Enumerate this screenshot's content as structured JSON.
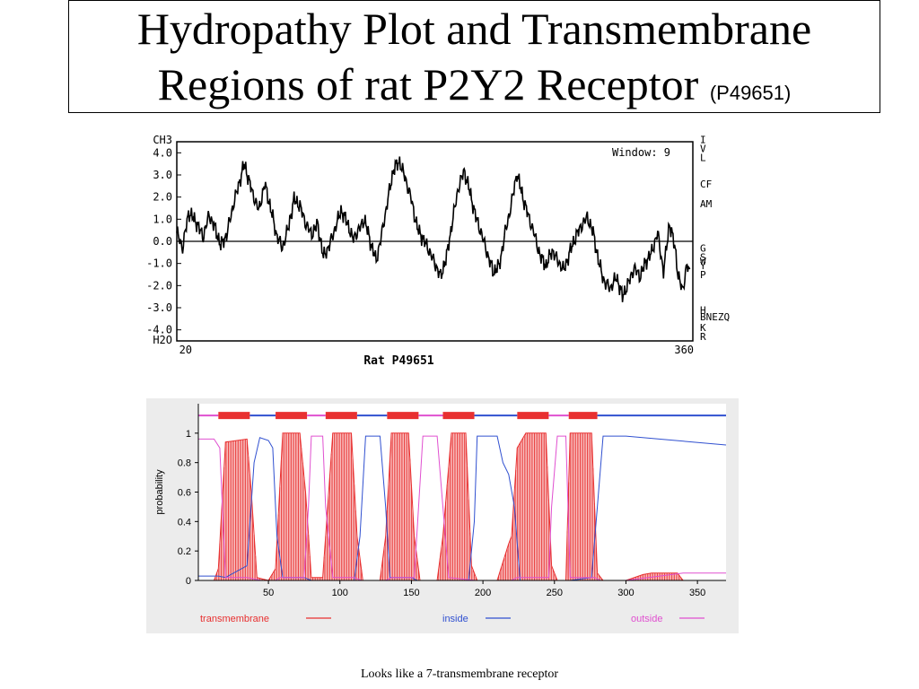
{
  "slide": {
    "title_line1": "Hydropathy Plot and Transmembrane",
    "title_line2": "Regions of rat P2Y2 Receptor",
    "title_accession": "(P49651)",
    "caption": "Looks like a 7-transmembrane receptor"
  },
  "chart_data": [
    {
      "type": "line",
      "xlabel": "Rat P49651",
      "annotation": "Window: 9",
      "ylabel_top": "CH3",
      "ylabel_bottom": "H2O",
      "ylim": [
        -4.5,
        4.5
      ],
      "xlim": [
        14,
        366
      ],
      "y_ticks": [
        "4.0",
        "3.0",
        "2.0",
        "1.0",
        "0.0",
        "-1.0",
        "-2.0",
        "-3.0",
        "-4.0"
      ],
      "y_tick_values": [
        4,
        3,
        2,
        1,
        0,
        -1,
        -2,
        -3,
        -4
      ],
      "x_ticks": [
        "20",
        "360"
      ],
      "x_tick_values": [
        20,
        360
      ],
      "right_labels": [
        "I",
        "V",
        "L",
        "CF",
        "AM",
        "G",
        "S",
        "W",
        "Y",
        "P",
        "H",
        "BNEZQ",
        "K",
        "R"
      ],
      "right_label_values": [
        4.6,
        4.2,
        3.8,
        2.6,
        1.7,
        -0.3,
        -0.7,
        -0.9,
        -1.1,
        -1.5,
        -3.1,
        -3.4,
        -3.9,
        -4.3
      ],
      "grid": false,
      "reference_line": 0,
      "series": [
        {
          "x": [
            14,
            18,
            22,
            27,
            32,
            36,
            40,
            44,
            48,
            52,
            56,
            60,
            63,
            66,
            70,
            74,
            78,
            82,
            86,
            90,
            94,
            98,
            102,
            106,
            110,
            114,
            118,
            122,
            126,
            130,
            134,
            138,
            142,
            146,
            150,
            154,
            158,
            162,
            166,
            170,
            174,
            178,
            182,
            186,
            190,
            194,
            198,
            202,
            206,
            210,
            214,
            218,
            222,
            226,
            230,
            234,
            238,
            242,
            246,
            250,
            254,
            258,
            262,
            266,
            270,
            274,
            278,
            282,
            286,
            290,
            294,
            298,
            302,
            306,
            310,
            314,
            318,
            322,
            326,
            330,
            334,
            338,
            342,
            346,
            350,
            354,
            356,
            359,
            362,
            364
          ],
          "y": [
            0.4,
            -0.3,
            1.3,
            0.9,
            0.2,
            1.2,
            0.6,
            -0.2,
            0.3,
            1.5,
            2.5,
            3.5,
            2.8,
            2.1,
            1.4,
            2.6,
            1.5,
            0.3,
            -0.3,
            0.6,
            1.9,
            1.6,
            0.8,
            0.3,
            0.8,
            -0.7,
            -0.2,
            0.6,
            1.4,
            0.9,
            0.1,
            0.5,
            1.0,
            0.0,
            -0.9,
            0.4,
            1.9,
            3.3,
            3.6,
            2.8,
            1.9,
            0.6,
            0.1,
            -0.4,
            -1.0,
            -1.6,
            -0.7,
            0.9,
            2.4,
            3.2,
            2.2,
            1.1,
            0.3,
            -0.6,
            -1.4,
            -1.1,
            0.4,
            1.6,
            3.1,
            2.0,
            1.1,
            0.3,
            -0.7,
            -1.1,
            -0.4,
            -0.9,
            -1.3,
            -0.5,
            0.2,
            0.7,
            1.1,
            0.4,
            -1.0,
            -1.9,
            -2.1,
            -1.6,
            -2.5,
            -1.9,
            -1.2,
            -1.6,
            -0.9,
            -0.5,
            0.4,
            -1.4,
            0.8,
            -0.3,
            -1.6,
            -2.2,
            -1.1,
            -1.4
          ]
        }
      ]
    },
    {
      "type": "line",
      "ylabel": "probability",
      "xlim": [
        1,
        370
      ],
      "ylim": [
        0,
        1.2
      ],
      "x_ticks": [
        "50",
        "100",
        "150",
        "200",
        "250",
        "300",
        "350"
      ],
      "x_tick_values": [
        50,
        100,
        150,
        200,
        250,
        300,
        350
      ],
      "y_ticks": [
        "0",
        "0.2",
        "0.4",
        "0.6",
        "0.8",
        "1"
      ],
      "y_tick_values": [
        0,
        0.2,
        0.4,
        0.6,
        0.8,
        1
      ],
      "grid": false,
      "legend_position": "bottom",
      "legend": [
        {
          "name": "transmembrane",
          "color": "#e83030"
        },
        {
          "name": "inside",
          "color": "#3050d0"
        },
        {
          "name": "outside",
          "color": "#e050d0"
        }
      ],
      "topology_bar": {
        "y": 1.12,
        "segments": [
          {
            "type": "outside",
            "start": 1,
            "end": 15
          },
          {
            "type": "transmembrane",
            "start": 15,
            "end": 37
          },
          {
            "type": "inside",
            "start": 37,
            "end": 55
          },
          {
            "type": "transmembrane",
            "start": 55,
            "end": 77
          },
          {
            "type": "outside",
            "start": 77,
            "end": 90
          },
          {
            "type": "transmembrane",
            "start": 90,
            "end": 112
          },
          {
            "type": "inside",
            "start": 112,
            "end": 133
          },
          {
            "type": "transmembrane",
            "start": 133,
            "end": 155
          },
          {
            "type": "outside",
            "start": 155,
            "end": 172
          },
          {
            "type": "transmembrane",
            "start": 172,
            "end": 194
          },
          {
            "type": "inside",
            "start": 194,
            "end": 224
          },
          {
            "type": "transmembrane",
            "start": 224,
            "end": 246
          },
          {
            "type": "outside",
            "start": 246,
            "end": 260
          },
          {
            "type": "transmembrane",
            "start": 260,
            "end": 280
          },
          {
            "type": "inside",
            "start": 280,
            "end": 370
          }
        ]
      },
      "series": [
        {
          "name": "transmembrane",
          "color": "#e83030",
          "x": [
            1,
            12,
            15,
            20,
            35,
            38,
            42,
            50,
            55,
            60,
            72,
            76,
            80,
            88,
            90,
            95,
            108,
            112,
            116,
            128,
            132,
            136,
            148,
            152,
            156,
            168,
            172,
            178,
            188,
            192,
            196,
            210,
            218,
            220,
            224,
            230,
            244,
            248,
            252,
            258,
            261,
            265,
            276,
            280,
            284,
            300,
            312,
            318,
            336,
            340,
            370
          ],
          "y": [
            0,
            0,
            0.08,
            0.94,
            0.96,
            0.6,
            0.02,
            0,
            0.08,
            1.0,
            1.0,
            0.6,
            0.02,
            0.02,
            0.3,
            1.0,
            1.0,
            0.3,
            0,
            0,
            0.3,
            1.0,
            1.0,
            0.3,
            0,
            0,
            0.3,
            1.0,
            1.0,
            0.1,
            0,
            0,
            0.25,
            0.3,
            0.9,
            1.0,
            1.0,
            0.1,
            0,
            0,
            1.0,
            1.0,
            1.0,
            0.05,
            0,
            0,
            0.04,
            0.05,
            0.05,
            0,
            0
          ]
        },
        {
          "name": "inside",
          "color": "#3050d0",
          "x": [
            1,
            15,
            20,
            35,
            40,
            44,
            50,
            53,
            56,
            60,
            75,
            80,
            88,
            92,
            110,
            114,
            118,
            128,
            132,
            135,
            150,
            154,
            160,
            168,
            172,
            190,
            194,
            196,
            210,
            214,
            218,
            222,
            226,
            244,
            248,
            252,
            258,
            261,
            276,
            280,
            284,
            300,
            370
          ],
          "y": [
            0.03,
            0.03,
            0.02,
            0.1,
            0.8,
            0.97,
            0.95,
            0.9,
            0.3,
            0.02,
            0.02,
            0.0,
            0.0,
            0.0,
            0.0,
            0.3,
            0.98,
            0.98,
            0.5,
            0.02,
            0.02,
            0.0,
            0.0,
            0.0,
            0.0,
            0.0,
            0.4,
            0.98,
            0.98,
            0.8,
            0.72,
            0.5,
            0.0,
            0.0,
            0.0,
            0.0,
            0.0,
            0.0,
            0.02,
            0.5,
            0.98,
            0.98,
            0.92
          ]
        },
        {
          "name": "outside",
          "color": "#e050d0",
          "x": [
            1,
            12,
            16,
            20,
            35,
            45,
            55,
            58,
            75,
            78,
            80,
            88,
            90,
            95,
            110,
            115,
            132,
            136,
            152,
            155,
            158,
            168,
            172,
            176,
            195,
            220,
            224,
            246,
            248,
            252,
            258,
            261,
            278,
            282,
            300,
            340,
            370
          ],
          "y": [
            0.96,
            0.96,
            0.9,
            0.02,
            0.02,
            0.0,
            0.0,
            0.02,
            0.02,
            0.5,
            0.98,
            0.98,
            0.5,
            0.02,
            0.02,
            0.0,
            0.0,
            0.02,
            0.02,
            0.5,
            0.98,
            0.98,
            0.5,
            0.02,
            0.0,
            0.0,
            0.02,
            0.02,
            0.5,
            0.98,
            0.98,
            0.02,
            0.02,
            0.0,
            0.0,
            0.05,
            0.05
          ]
        }
      ]
    }
  ]
}
